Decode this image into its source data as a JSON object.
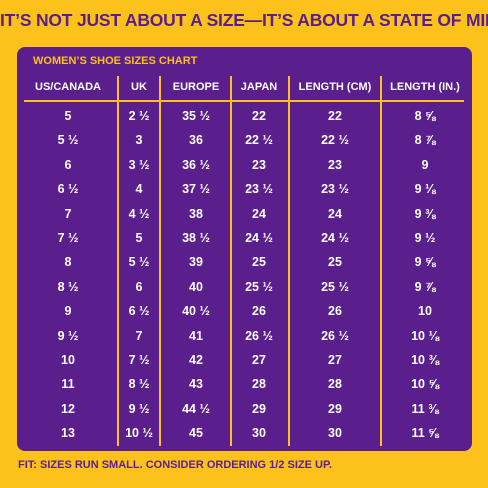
{
  "header": {
    "title": "IT’S NOT JUST ABOUT A SIZE—IT’S ABOUT A STATE OF MIND!"
  },
  "table": {
    "title": "WOMEN’S SHOE SIZES CHART",
    "columns": [
      "US/CANADA",
      "UK",
      "EUROPE",
      "JAPAN",
      "LENGTH (CM)",
      "LENGTH (IN.)"
    ],
    "rows": [
      [
        "5",
        "2 ½",
        "35 ½",
        "22",
        "22",
        "8 ⅝"
      ],
      [
        "5 ½",
        "3",
        "36",
        "22 ½",
        "22 ½",
        "8 ⅞"
      ],
      [
        "6",
        "3 ½",
        "36 ½",
        "23",
        "23",
        "9"
      ],
      [
        "6 ½",
        "4",
        "37 ½",
        "23 ½",
        "23 ½",
        "9 ⅛"
      ],
      [
        "7",
        "4 ½",
        "38",
        "24",
        "24",
        "9 ⅜"
      ],
      [
        "7 ½",
        "5",
        "38 ½",
        "24 ½",
        "24 ½",
        "9 ½"
      ],
      [
        "8",
        "5 ½",
        "39",
        "25",
        "25",
        "9 ⅝"
      ],
      [
        "8 ½",
        "6",
        "40",
        "25 ½",
        "25 ½",
        "9 ⅞"
      ],
      [
        "9",
        "6 ½",
        "40 ½",
        "26",
        "26",
        "10"
      ],
      [
        "9 ½",
        "7",
        "41",
        "26 ½",
        "26 ½",
        "10 ⅛"
      ],
      [
        "10",
        "7 ½",
        "42",
        "27",
        "27",
        "10 ⅜"
      ],
      [
        "11",
        "8 ½",
        "43",
        "28",
        "28",
        "10 ⅝"
      ],
      [
        "12",
        "9 ½",
        "44 ½",
        "29",
        "29",
        "11 ⅜"
      ],
      [
        "13",
        "10 ½",
        "45",
        "30",
        "30",
        "11 ⅝"
      ]
    ]
  },
  "footer": {
    "note": "FIT: SIZES RUN SMALL. CONSIDER ORDERING 1/2 SIZE UP."
  }
}
